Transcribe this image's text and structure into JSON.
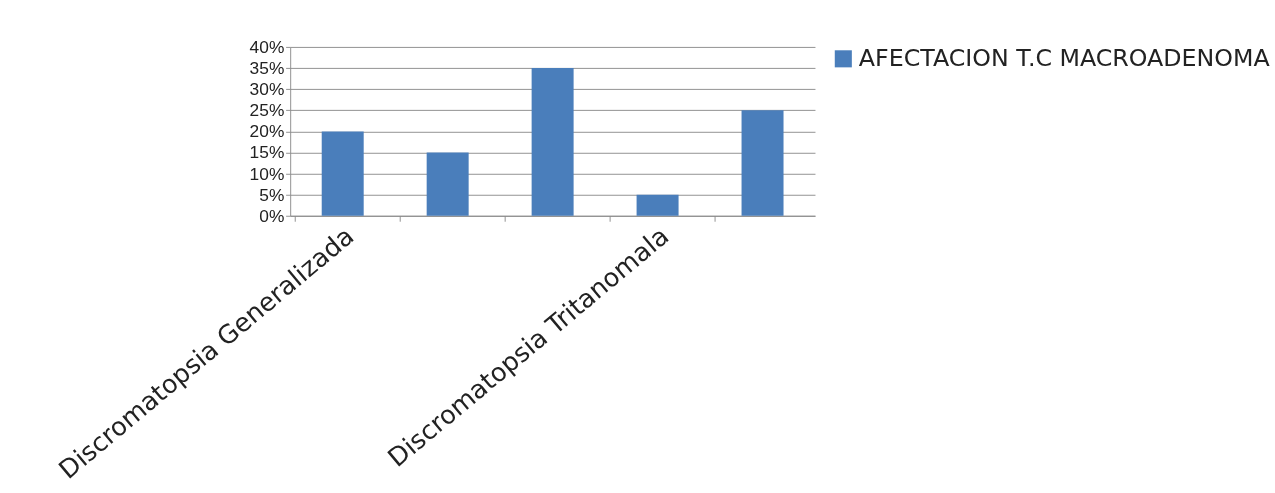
{
  "chart_data": {
    "type": "bar",
    "categories": [
      "Discromatopsia Generalizada",
      null,
      null,
      "Discromatopsia Tritanomala",
      null
    ],
    "series": [
      {
        "name": "AFECTACION T.C MACROADENOMA",
        "color": "#4a7ebb",
        "values": [
          20,
          15,
          35,
          5,
          25
        ]
      }
    ],
    "ylim": [
      0,
      40
    ],
    "yticks": [
      {
        "value": 0,
        "label": "0%"
      },
      {
        "value": 5,
        "label": "5%"
      },
      {
        "value": 10,
        "label": "10%"
      },
      {
        "value": 15,
        "label": "15%"
      },
      {
        "value": 20,
        "label": "20%"
      },
      {
        "value": 25,
        "label": "25%"
      },
      {
        "value": 30,
        "label": "30%"
      },
      {
        "value": 35,
        "label": "35%"
      },
      {
        "value": 40,
        "label": "40%"
      }
    ],
    "grid": "y",
    "legend": "right"
  }
}
